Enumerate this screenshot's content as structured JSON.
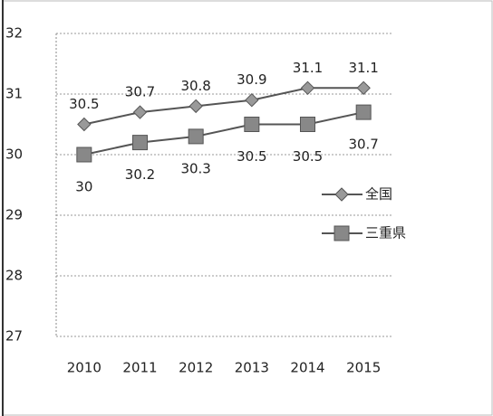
{
  "chart_data": {
    "type": "line",
    "categories": [
      "2010",
      "2011",
      "2012",
      "2013",
      "2014",
      "2015"
    ],
    "series": [
      {
        "name": "全国",
        "color": "#555555",
        "marker": "diamond",
        "values": [
          30.5,
          30.7,
          30.8,
          30.9,
          31.1,
          31.1
        ]
      },
      {
        "name": "三重県",
        "color": "#555555",
        "marker": "square",
        "values": [
          30,
          30.2,
          30.3,
          30.5,
          30.5,
          30.7
        ]
      }
    ],
    "ylim": [
      27,
      32
    ],
    "yticks": [
      27,
      28,
      29,
      30,
      31,
      32
    ],
    "grid": true,
    "legend": "right"
  }
}
